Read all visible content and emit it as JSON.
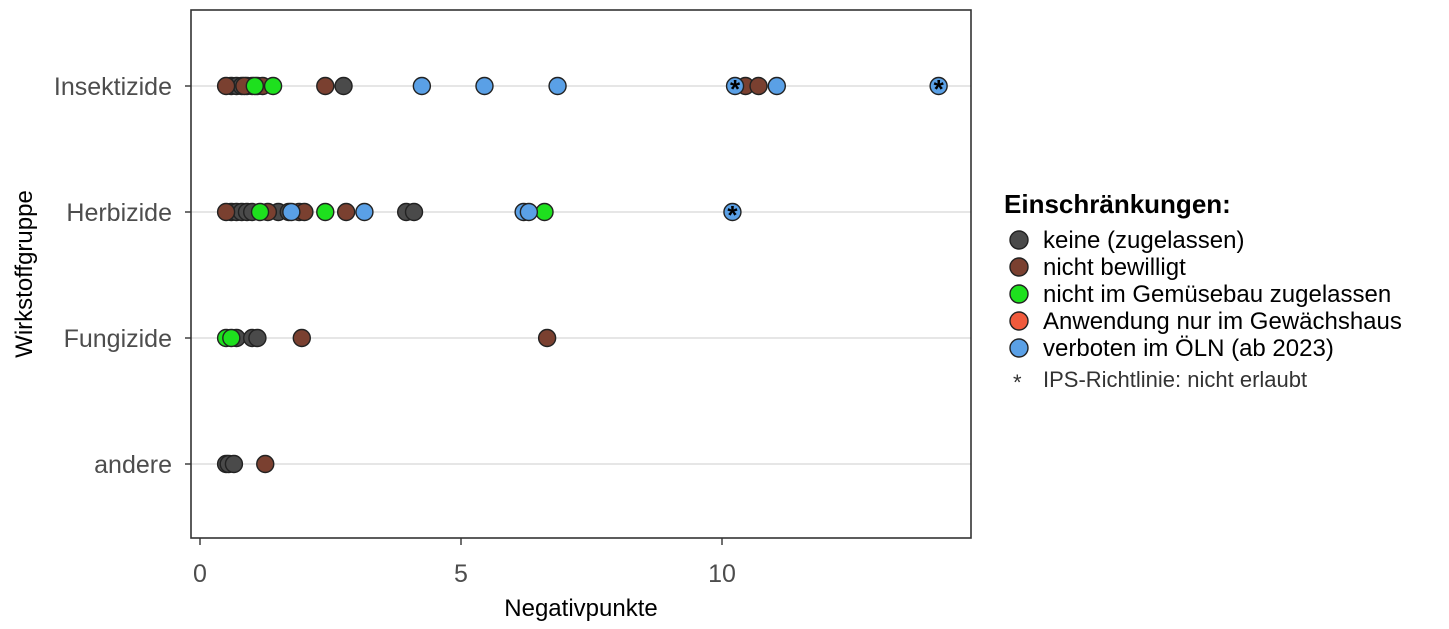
{
  "chart_data": {
    "type": "scatter",
    "title": "",
    "xlabel": "Negativpunkte",
    "ylabel": "Wirkstoffgruppe",
    "xlim": [
      -0.2,
      14.8
    ],
    "xticks": [
      0,
      5,
      10
    ],
    "xtick_labels": [
      "0",
      "5",
      "10"
    ],
    "categories": [
      "Insektizide",
      "Herbizide",
      "Fungizide",
      "andere"
    ],
    "grid": "horizontal",
    "legend_position": "right",
    "legend": {
      "title": "Einschränkungen:",
      "entries": [
        {
          "key": "keine",
          "label": "keine (zugelassen)",
          "color": "#4a4a4a"
        },
        {
          "key": "nicht_bewilligt",
          "label": "nicht bewilligt",
          "color": "#7a4030"
        },
        {
          "key": "gemuesebau",
          "label": "nicht im Gemüsebau zugelassen",
          "color": "#1ee01e"
        },
        {
          "key": "gewaechshaus",
          "label": "Anwendung nur im Gewächshaus",
          "color": "#f05a3c"
        },
        {
          "key": "oeln",
          "label": "verboten im ÖLN (ab 2023)",
          "color": "#5aa0e6"
        }
      ],
      "note_symbol": "*",
      "note_text": "IPS-Richtlinie: nicht erlaubt"
    },
    "series": [
      {
        "key": "keine",
        "points": [
          {
            "x": 0.6,
            "y": "Insektizide"
          },
          {
            "x": 0.7,
            "y": "Insektizide"
          },
          {
            "x": 0.8,
            "y": "Insektizide"
          },
          {
            "x": 0.9,
            "y": "Insektizide"
          },
          {
            "x": 1.0,
            "y": "Insektizide"
          },
          {
            "x": 1.1,
            "y": "Insektizide"
          },
          {
            "x": 2.75,
            "y": "Insektizide"
          },
          {
            "x": 0.6,
            "y": "Herbizide"
          },
          {
            "x": 0.7,
            "y": "Herbizide"
          },
          {
            "x": 0.8,
            "y": "Herbizide"
          },
          {
            "x": 0.9,
            "y": "Herbizide"
          },
          {
            "x": 1.0,
            "y": "Herbizide"
          },
          {
            "x": 1.5,
            "y": "Herbizide"
          },
          {
            "x": 1.7,
            "y": "Herbizide"
          },
          {
            "x": 3.95,
            "y": "Herbizide"
          },
          {
            "x": 4.1,
            "y": "Herbizide"
          },
          {
            "x": 0.7,
            "y": "Fungizide"
          },
          {
            "x": 1.0,
            "y": "Fungizide"
          },
          {
            "x": 1.1,
            "y": "Fungizide"
          },
          {
            "x": 0.5,
            "y": "andere"
          },
          {
            "x": 0.55,
            "y": "andere"
          },
          {
            "x": 0.65,
            "y": "andere"
          }
        ]
      },
      {
        "key": "nicht_bewilligt",
        "points": [
          {
            "x": 0.5,
            "y": "Insektizide"
          },
          {
            "x": 0.85,
            "y": "Insektizide"
          },
          {
            "x": 1.2,
            "y": "Insektizide"
          },
          {
            "x": 2.4,
            "y": "Insektizide"
          },
          {
            "x": 10.45,
            "y": "Insektizide"
          },
          {
            "x": 10.7,
            "y": "Insektizide"
          },
          {
            "x": 1.3,
            "y": "Herbizide"
          },
          {
            "x": 1.9,
            "y": "Herbizide"
          },
          {
            "x": 2.0,
            "y": "Herbizide"
          },
          {
            "x": 2.8,
            "y": "Herbizide"
          },
          {
            "x": 0.5,
            "y": "Herbizide"
          },
          {
            "x": 1.95,
            "y": "Fungizide"
          },
          {
            "x": 6.65,
            "y": "Fungizide"
          },
          {
            "x": 1.25,
            "y": "andere"
          }
        ]
      },
      {
        "key": "gemuesebau",
        "points": [
          {
            "x": 1.4,
            "y": "Insektizide"
          },
          {
            "x": 1.05,
            "y": "Insektizide"
          },
          {
            "x": 1.15,
            "y": "Herbizide"
          },
          {
            "x": 2.4,
            "y": "Herbizide"
          },
          {
            "x": 6.6,
            "y": "Herbizide"
          },
          {
            "x": 0.5,
            "y": "Fungizide"
          },
          {
            "x": 0.6,
            "y": "Fungizide"
          }
        ]
      },
      {
        "key": "gewaechshaus",
        "points": []
      },
      {
        "key": "oeln",
        "points": [
          {
            "x": 4.25,
            "y": "Insektizide"
          },
          {
            "x": 5.45,
            "y": "Insektizide"
          },
          {
            "x": 6.85,
            "y": "Insektizide"
          },
          {
            "x": 10.25,
            "y": "Insektizide",
            "ips": true
          },
          {
            "x": 11.05,
            "y": "Insektizide"
          },
          {
            "x": 14.15,
            "y": "Insektizide",
            "ips": true
          },
          {
            "x": 1.75,
            "y": "Herbizide"
          },
          {
            "x": 3.15,
            "y": "Herbizide"
          },
          {
            "x": 6.2,
            "y": "Herbizide"
          },
          {
            "x": 6.3,
            "y": "Herbizide"
          },
          {
            "x": 10.2,
            "y": "Herbizide",
            "ips": true
          }
        ]
      }
    ]
  }
}
